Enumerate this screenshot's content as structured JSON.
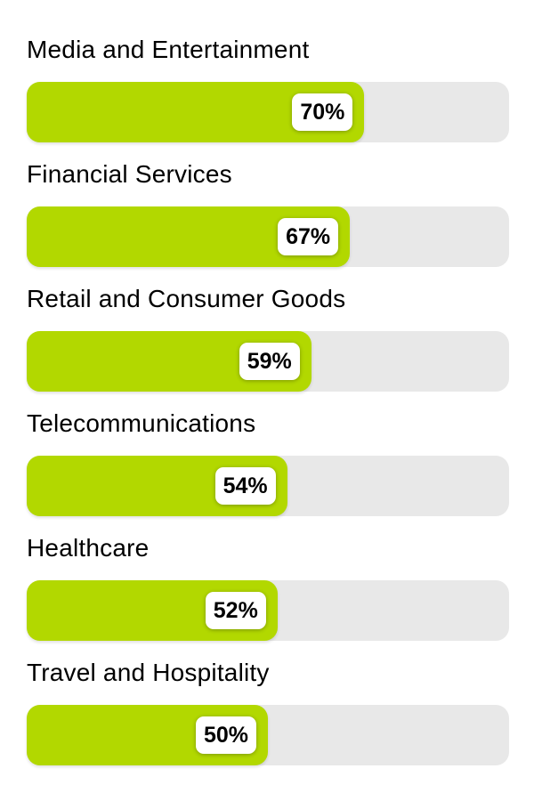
{
  "chart_data": {
    "type": "bar",
    "orientation": "horizontal",
    "title": "",
    "xlabel": "",
    "ylabel": "",
    "xlim": [
      0,
      100
    ],
    "grid": false,
    "legend": false,
    "categories": [
      "Media and Entertainment",
      "Financial Services",
      "Retail and Consumer Goods",
      "Telecommunications",
      "Healthcare",
      "Travel and Hospitality"
    ],
    "values": [
      70,
      67,
      59,
      54,
      52,
      50
    ],
    "value_labels": [
      "70%",
      "67%",
      "59%",
      "54%",
      "52%",
      "50%"
    ],
    "colors": {
      "bar_fill": "#b2d800",
      "bar_track": "#e8e8e8",
      "label_badge_bg": "#ffffff",
      "text": "#000000"
    }
  }
}
